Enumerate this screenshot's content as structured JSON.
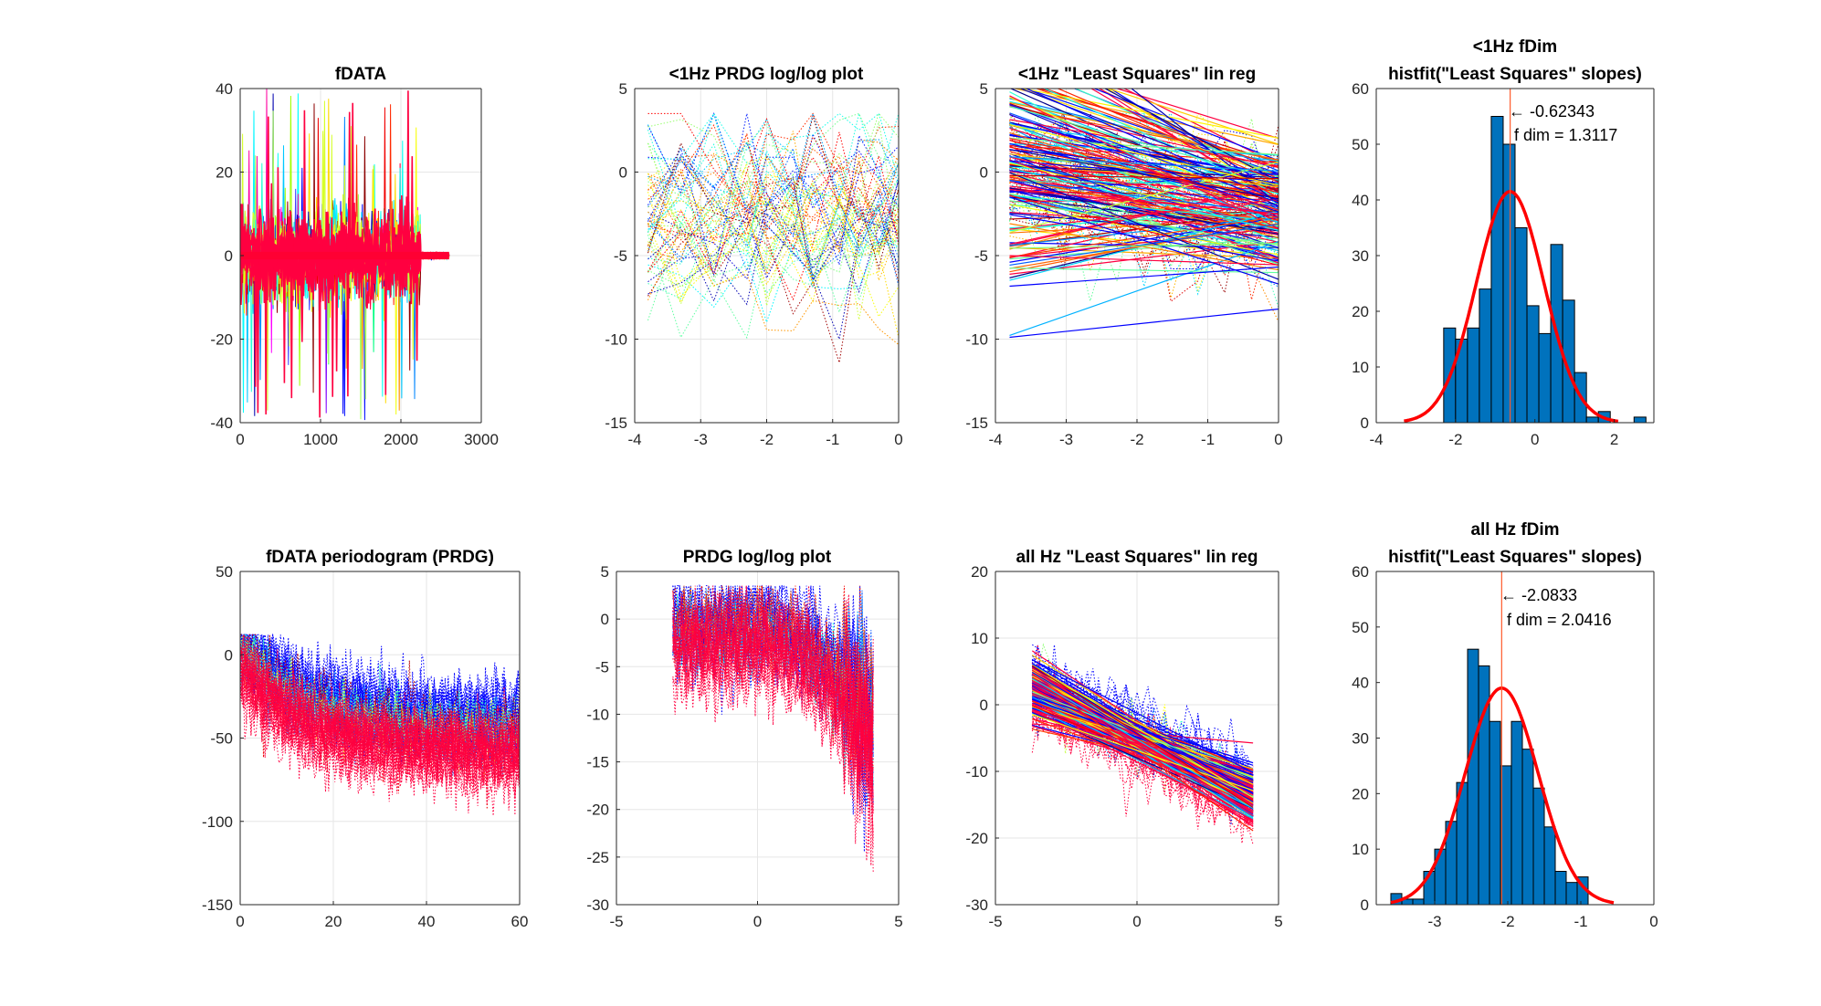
{
  "figure": {
    "background": "#ffffff",
    "axis_color": "#262626",
    "grid_color": "#e6e6e6"
  },
  "chart_data": [
    {
      "id": "p1",
      "type": "line",
      "title": [
        "fDATA"
      ],
      "xlim": [
        0,
        3000
      ],
      "ylim": [
        -40,
        40
      ],
      "xticks": [
        0,
        1000,
        2000,
        3000
      ],
      "yticks": [
        -40,
        -20,
        0,
        20,
        40
      ],
      "xtick_labels": [
        "0",
        "1000",
        "2000",
        "3000"
      ],
      "ytick_labels": [
        "-40",
        "-20",
        "0",
        "20",
        "40"
      ],
      "grid": true,
      "note": "hundreds of overlaid colored time-series traces (jet colormap), centered on 0, spikes up to ±40",
      "series_summary": {
        "x_range": [
          0,
          2600
        ],
        "burst_range": [
          0,
          2250
        ],
        "typical_amplitude": 12,
        "max_amplitude": 40
      }
    },
    {
      "id": "p2",
      "type": "line",
      "title": [
        "<1Hz PRDG log/log plot"
      ],
      "xlim": [
        -4,
        0
      ],
      "ylim": [
        -15,
        5
      ],
      "xticks": [
        -4,
        -3,
        -2,
        -1,
        0
      ],
      "yticks": [
        -15,
        -10,
        -5,
        0,
        5
      ],
      "xtick_labels": [
        "-4",
        "-3",
        "-2",
        "-1",
        "0"
      ],
      "ytick_labels": [
        "-15",
        "-10",
        "-5",
        "0",
        "5"
      ],
      "grid": true,
      "note": "dotted colored log/log periodogram traces for frequencies below 1 Hz",
      "series_summary": {
        "x_points": [
          -3.8,
          -3.3,
          -2.8,
          -2.3,
          -2.0,
          -1.6,
          -1.3,
          -0.9,
          -0.6,
          -0.3,
          0
        ],
        "y_center": -2.5,
        "y_spread": 3.5,
        "y_min": -12.5,
        "y_max": 3.5
      }
    },
    {
      "id": "p3",
      "type": "line",
      "title": [
        "<1Hz \"Least Squares\" lin reg"
      ],
      "xlim": [
        -4,
        0
      ],
      "ylim": [
        -15,
        5
      ],
      "xticks": [
        -4,
        -3,
        -2,
        -1,
        0
      ],
      "yticks": [
        -15,
        -10,
        -5,
        0,
        5
      ],
      "xtick_labels": [
        "-4",
        "-3",
        "-2",
        "-1",
        "0"
      ],
      "ytick_labels": [
        "-15",
        "-10",
        "-5",
        "0",
        "5"
      ],
      "grid": true,
      "note": "dotted data plus solid least-squares regression lines for <1 Hz band",
      "series_summary": {
        "fit_x_range": [
          -3.8,
          0
        ],
        "intercept_center": -2.3,
        "intercept_spread": 2.6,
        "slope_mean": -0.62343,
        "slope_spread": 0.9
      }
    },
    {
      "id": "p4",
      "type": "bar",
      "title": [
        "<1Hz fDim",
        "histfit(\"Least Squares\" slopes)"
      ],
      "xlim": [
        -4,
        3
      ],
      "ylim": [
        0,
        60
      ],
      "xticks": [
        -4,
        -2,
        0,
        2
      ],
      "yticks": [
        0,
        10,
        20,
        30,
        40,
        50,
        60
      ],
      "xtick_labels": [
        "-4",
        "-2",
        "0",
        "2"
      ],
      "ytick_labels": [
        "0",
        "10",
        "20",
        "30",
        "40",
        "50",
        "60"
      ],
      "grid": false,
      "bins": [
        {
          "left": -2.3,
          "right": -2.0,
          "count": 17
        },
        {
          "left": -2.0,
          "right": -1.7,
          "count": 15
        },
        {
          "left": -1.7,
          "right": -1.4,
          "count": 17
        },
        {
          "left": -1.4,
          "right": -1.1,
          "count": 24
        },
        {
          "left": -1.1,
          "right": -0.8,
          "count": 55
        },
        {
          "left": -0.8,
          "right": -0.5,
          "count": 50
        },
        {
          "left": -0.5,
          "right": -0.2,
          "count": 35
        },
        {
          "left": -0.2,
          "right": 0.1,
          "count": 21
        },
        {
          "left": 0.1,
          "right": 0.4,
          "count": 16
        },
        {
          "left": 0.4,
          "right": 0.7,
          "count": 32
        },
        {
          "left": 0.7,
          "right": 1.0,
          "count": 22
        },
        {
          "left": 1.0,
          "right": 1.3,
          "count": 9
        },
        {
          "left": 1.3,
          "right": 1.6,
          "count": 1
        },
        {
          "left": 1.6,
          "right": 1.9,
          "count": 2
        },
        {
          "left": 2.5,
          "right": 2.8,
          "count": 1
        }
      ],
      "fit": {
        "mean": -0.62343,
        "sd": 0.85,
        "peak": 41.5,
        "x_range": [
          -3.3,
          2.1
        ]
      },
      "mean_line_x": -0.62343,
      "annotation_lines": [
        "← -0.62343",
        "f dim = 1.3117"
      ],
      "bar_color": "#0072bd",
      "fit_color": "#ff0000",
      "mean_line_color": "#ff5a2a"
    },
    {
      "id": "p5",
      "type": "line",
      "title": [
        "fDATA periodogram (PRDG)"
      ],
      "xlim": [
        0,
        60
      ],
      "ylim": [
        -150,
        50
      ],
      "xticks": [
        0,
        20,
        40,
        60
      ],
      "yticks": [
        -150,
        -100,
        -50,
        0,
        50
      ],
      "xtick_labels": [
        "0",
        "20",
        "40",
        "60"
      ],
      "ytick_labels": [
        "-150",
        "-100",
        "-50",
        "0",
        "50"
      ],
      "grid": true,
      "note": "dense dotted colored periodogram traces decaying from ~0 to ~-50 dB",
      "series_summary": {
        "start_level": -5,
        "end_level": -55,
        "upper_envelope": [
          10,
          -25
        ],
        "lower_envelope": [
          -40,
          -100
        ]
      }
    },
    {
      "id": "p6",
      "type": "line",
      "title": [
        "PRDG log/log plot"
      ],
      "xlim": [
        -5,
        5
      ],
      "ylim": [
        -30,
        5
      ],
      "xticks": [
        -5,
        0,
        5
      ],
      "yticks": [
        -30,
        -25,
        -20,
        -15,
        -10,
        -5,
        0,
        5
      ],
      "xtick_labels": [
        "-5",
        "0",
        "5"
      ],
      "ytick_labels": [
        "-30",
        "-25",
        "-20",
        "-15",
        "-10",
        "-5",
        "0",
        "5"
      ],
      "grid": true,
      "note": "dotted colored log/log periodogram over all frequencies, decaying",
      "series_summary": {
        "x_range": [
          -3,
          4.1
        ],
        "start_level": -2,
        "end_level": -13,
        "spread": 5
      }
    },
    {
      "id": "p7",
      "type": "line",
      "title": [
        "all Hz \"Least Squares\" lin reg"
      ],
      "xlim": [
        -5,
        5
      ],
      "ylim": [
        -30,
        20
      ],
      "xticks": [
        -5,
        0,
        5
      ],
      "yticks": [
        -30,
        -20,
        -10,
        0,
        10,
        20
      ],
      "xtick_labels": [
        "-5",
        "0",
        "5"
      ],
      "ytick_labels": [
        "-30",
        "-20",
        "-10",
        "0",
        "10",
        "20"
      ],
      "grid": true,
      "note": "dotted data plus solid least-squares regression lines over all frequencies",
      "series_summary": {
        "fit_x_range": [
          -3.7,
          4.1
        ],
        "slope_mean": -2.0833,
        "slope_spread": 0.45,
        "center_y": -5.5
      }
    },
    {
      "id": "p8",
      "type": "bar",
      "title": [
        "all Hz fDim",
        "histfit(\"Least Squares\" slopes)"
      ],
      "xlim": [
        -3.8,
        0
      ],
      "ylim": [
        0,
        60
      ],
      "xticks": [
        -3,
        -2,
        -1,
        0
      ],
      "yticks": [
        0,
        10,
        20,
        30,
        40,
        50,
        60
      ],
      "xtick_labels": [
        "-3",
        "-2",
        "-1",
        "0"
      ],
      "ytick_labels": [
        "0",
        "10",
        "20",
        "30",
        "40",
        "50",
        "60"
      ],
      "grid": false,
      "bins": [
        {
          "left": -3.6,
          "right": -3.45,
          "count": 2
        },
        {
          "left": -3.45,
          "right": -3.3,
          "count": 1
        },
        {
          "left": -3.3,
          "right": -3.15,
          "count": 1
        },
        {
          "left": -3.15,
          "right": -3.0,
          "count": 6
        },
        {
          "left": -3.0,
          "right": -2.85,
          "count": 10
        },
        {
          "left": -2.85,
          "right": -2.7,
          "count": 15
        },
        {
          "left": -2.7,
          "right": -2.55,
          "count": 22
        },
        {
          "left": -2.55,
          "right": -2.4,
          "count": 46
        },
        {
          "left": -2.4,
          "right": -2.25,
          "count": 43
        },
        {
          "left": -2.25,
          "right": -2.1,
          "count": 33
        },
        {
          "left": -2.1,
          "right": -1.95,
          "count": 25
        },
        {
          "left": -1.95,
          "right": -1.8,
          "count": 33
        },
        {
          "left": -1.8,
          "right": -1.65,
          "count": 28
        },
        {
          "left": -1.65,
          "right": -1.5,
          "count": 21
        },
        {
          "left": -1.5,
          "right": -1.35,
          "count": 14
        },
        {
          "left": -1.35,
          "right": -1.2,
          "count": 6
        },
        {
          "left": -1.2,
          "right": -1.05,
          "count": 4
        },
        {
          "left": -1.05,
          "right": -0.9,
          "count": 5
        }
      ],
      "fit": {
        "mean": -2.0833,
        "sd": 0.5,
        "peak": 39,
        "x_range": [
          -3.6,
          -0.55
        ]
      },
      "mean_line_x": -2.0833,
      "annotation_lines": [
        "← -2.0833",
        "f dim = 2.0416"
      ],
      "bar_color": "#0072bd",
      "fit_color": "#ff0000",
      "mean_line_color": "#ff5a2a"
    }
  ]
}
